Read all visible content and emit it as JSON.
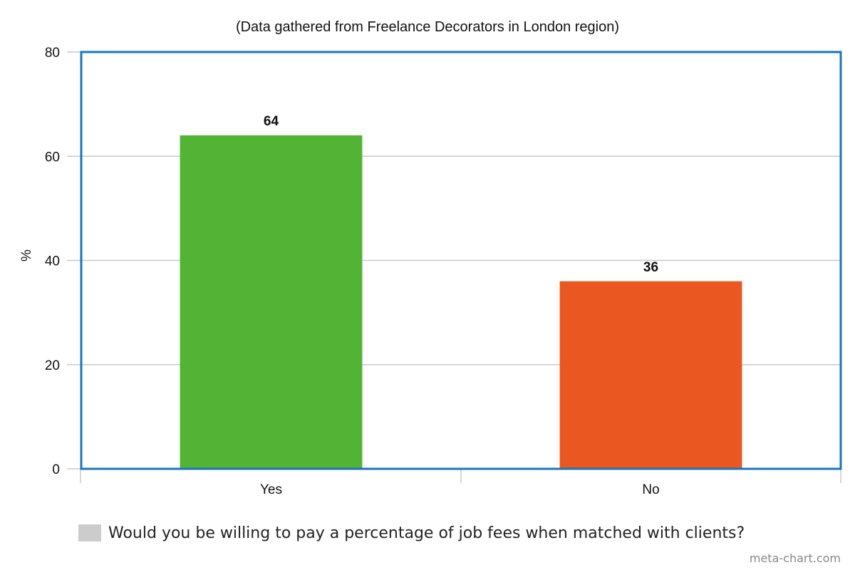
{
  "chart_data": {
    "type": "bar",
    "subtitle": "(Data gathered from Freelance Decorators in London region)",
    "categories": [
      "Yes",
      "No"
    ],
    "series": [
      {
        "name": "Would you be willing to pay a percentage of job fees when matched with clients?",
        "values": [
          64,
          36
        ],
        "colors": [
          "#52b334",
          "#ea5720"
        ]
      }
    ],
    "data_labels": [
      "64",
      "36"
    ],
    "ylabel": "%",
    "ylim": [
      0,
      80
    ],
    "yticks": [
      0,
      20,
      40,
      60,
      80
    ],
    "grid": true,
    "legend_position": "bottom-left",
    "legend_swatch_color": "#cccccc",
    "frame_color": "#1a75bc",
    "gridline_color": "#c8c8c8"
  },
  "credit": "meta-chart.com"
}
